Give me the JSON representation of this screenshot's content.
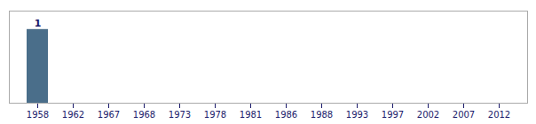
{
  "chart_data": {
    "type": "bar",
    "categories": [
      "1958",
      "1962",
      "1967",
      "1968",
      "1973",
      "1978",
      "1981",
      "1986",
      "1988",
      "1993",
      "1997",
      "2002",
      "2007",
      "2012"
    ],
    "values": [
      1,
      0,
      0,
      0,
      0,
      0,
      0,
      0,
      0,
      0,
      0,
      0,
      0,
      0
    ],
    "value_labels": [
      "1",
      null,
      null,
      null,
      null,
      null,
      null,
      null,
      null,
      null,
      null,
      null,
      null,
      null
    ],
    "data_labels": true,
    "color": "#4a6e8a",
    "ylim": [
      0,
      1.25
    ],
    "grid": false,
    "tick_labels": "x"
  }
}
